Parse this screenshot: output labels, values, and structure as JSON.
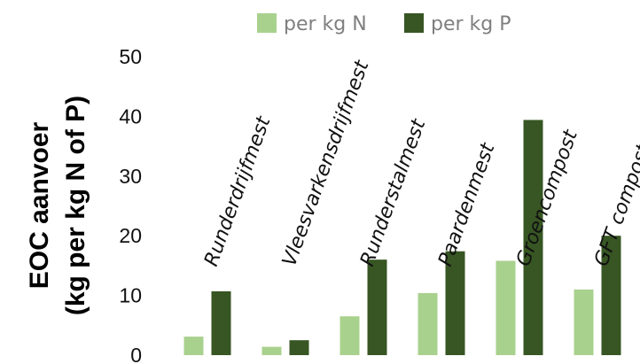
{
  "chart_data": {
    "type": "bar",
    "ylabel_line1": "EOC aanvoer",
    "ylabel_line2": "(kg per kg N of P)",
    "ylim": [
      0,
      50
    ],
    "yticks": [
      0,
      10,
      20,
      30,
      40,
      50
    ],
    "legend_position": "top",
    "categories": [
      "Runderdrijfmest",
      "Vleesvarkensdrijfmest",
      "Runderstalmest",
      "Paardenmest",
      "Groencompost",
      "GFT compost"
    ],
    "series": [
      {
        "name": "per kg N",
        "color": "#a9d18e",
        "values": [
          3.1,
          1.4,
          6.5,
          10.4,
          15.8,
          11.0
        ]
      },
      {
        "name": "per kg P",
        "color": "#375623",
        "values": [
          10.7,
          2.5,
          16.0,
          17.4,
          39.4,
          20.0
        ]
      }
    ]
  }
}
